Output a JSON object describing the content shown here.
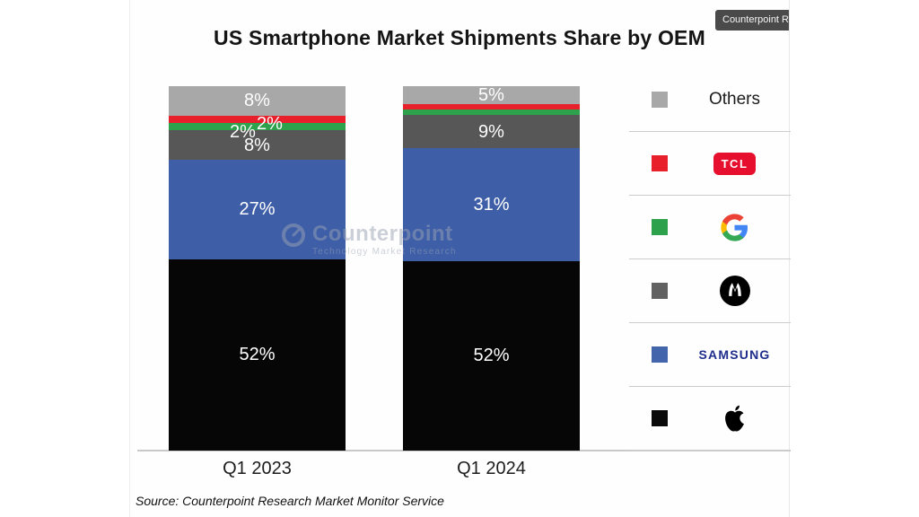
{
  "title": "US Smartphone Market Shipments Share by OEM",
  "tooltip": "Counterpoint R",
  "source": "Source: Counterpoint Research Market Monitor Service",
  "watermark": {
    "name": "Counterpoint",
    "subtitle": "Technology Market Research"
  },
  "chart_data": {
    "type": "bar",
    "subtype": "stacked-percent",
    "title": "US Smartphone Market Shipments Share by OEM",
    "categories": [
      "Q1 2023",
      "Q1 2024"
    ],
    "series": [
      {
        "name": "Apple",
        "color": "#060606",
        "values": [
          52,
          52
        ],
        "labels": [
          "52%",
          "52%"
        ]
      },
      {
        "name": "Samsung",
        "color": "#3e5fa7",
        "values": [
          27,
          31
        ],
        "labels": [
          "27%",
          "31%"
        ]
      },
      {
        "name": "Motorola",
        "color": "#575757",
        "values": [
          8,
          9
        ],
        "labels": [
          "8%",
          "9%"
        ]
      },
      {
        "name": "Google",
        "color": "#2da14c",
        "values": [
          2,
          1.5
        ],
        "labels": [
          "2%",
          ""
        ]
      },
      {
        "name": "TCL",
        "color": "#e7202c",
        "values": [
          2,
          1.5
        ],
        "labels": [
          "2%",
          ""
        ]
      },
      {
        "name": "Others",
        "color": "#a8a8a8",
        "values": [
          8,
          5
        ],
        "labels": [
          "8%",
          "5%"
        ]
      }
    ],
    "stack_order_top_to_bottom": [
      "Others",
      "TCL",
      "Google",
      "Motorola",
      "Samsung",
      "Apple"
    ],
    "xlabel": "",
    "ylabel": "",
    "unit": "% share",
    "ylim": [
      0,
      100
    ],
    "grid": false,
    "legend_position": "right",
    "label_color": "#ffffff"
  },
  "legend": {
    "items": [
      {
        "brand": "Others",
        "swatch_color": "#a8a8a8",
        "logo": "text",
        "text": "Others"
      },
      {
        "brand": "TCL",
        "swatch_color": "#e7202c",
        "logo": "tcl-badge",
        "text": "TCL",
        "badge_color": "#e60f2e"
      },
      {
        "brand": "Google",
        "swatch_color": "#2da14c",
        "logo": "google-g"
      },
      {
        "brand": "Motorola",
        "swatch_color": "#616161",
        "logo": "motorola-m"
      },
      {
        "brand": "Samsung",
        "swatch_color": "#4365ab",
        "logo": "samsung-wordmark",
        "text": "SAMSUNG",
        "text_color": "#1f2d8c"
      },
      {
        "brand": "Apple",
        "swatch_color": "#0a0a0a",
        "logo": "apple-mark"
      }
    ]
  }
}
